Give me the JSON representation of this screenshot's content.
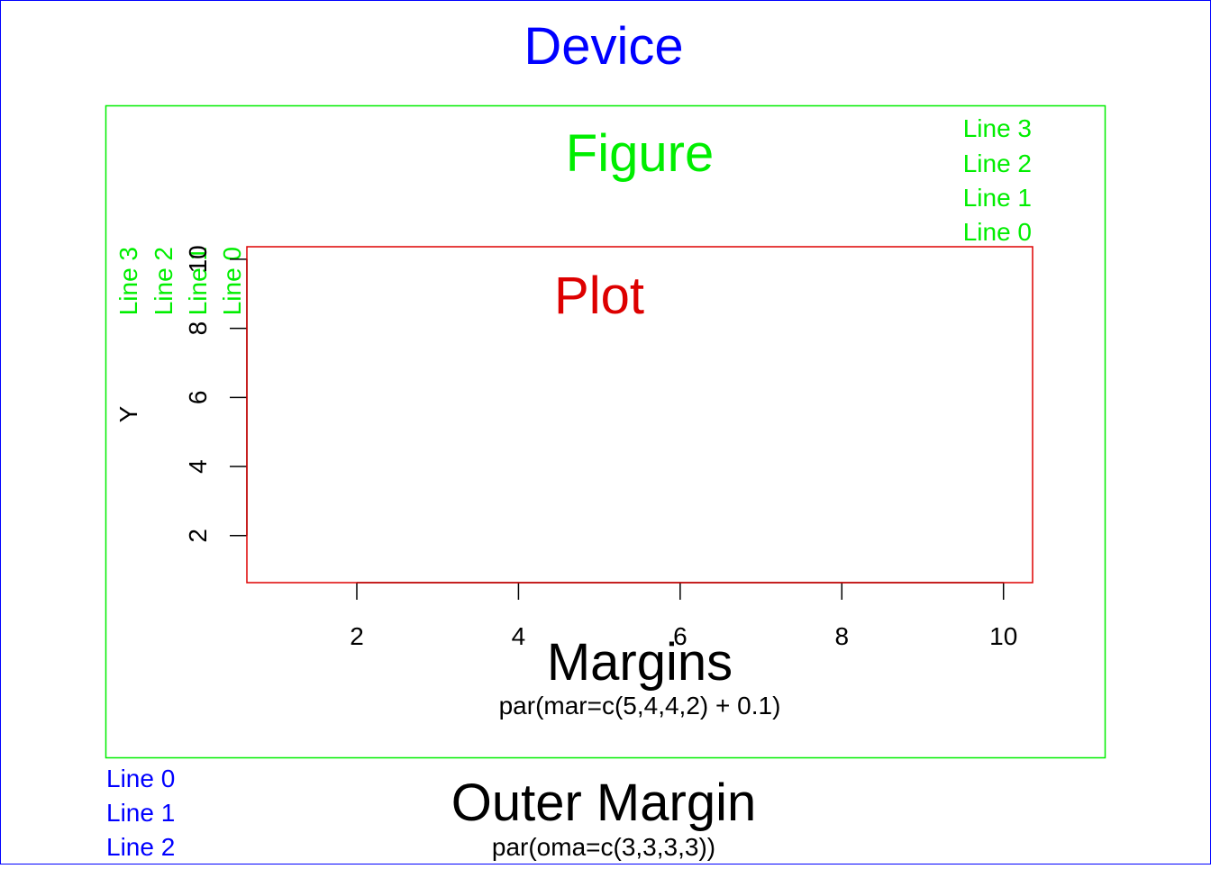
{
  "device": {
    "title": "Device",
    "color": "#0000ff",
    "outer_margin_lines": [
      "Line 0",
      "Line 1",
      "Line 2"
    ],
    "outer_margin_title": "Outer Margin",
    "outer_margin_code": "par(oma=c(3,3,3,3))"
  },
  "figure": {
    "title": "Figure",
    "color": "#00ee00",
    "top_margin_lines": [
      "Line 3",
      "Line 2",
      "Line 1",
      "Line 0"
    ],
    "left_margin_lines": [
      "Line 3",
      "Line 2",
      "Line 1",
      "Line 0"
    ],
    "margins_title": "Margins",
    "margins_code": "par(mar=c(5,4,4,2) + 0.1)"
  },
  "plot": {
    "title": "Plot",
    "color": "#dd0000"
  },
  "chart_data": {
    "type": "scatter",
    "title": "",
    "xlabel": "",
    "ylabel": "Y",
    "xlim": [
      0.64,
      10.36
    ],
    "ylim": [
      0.64,
      10.36
    ],
    "x_ticks": [
      "2",
      "4",
      "6",
      "8",
      "10"
    ],
    "y_ticks": [
      "2",
      "4",
      "6",
      "8",
      "10"
    ],
    "x": [],
    "y": [],
    "grid": false
  }
}
